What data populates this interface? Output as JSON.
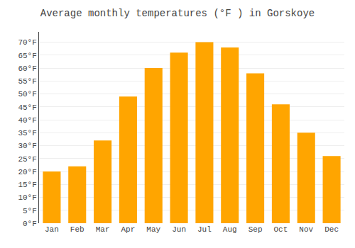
{
  "chart_data": {
    "type": "bar",
    "title": "Average monthly temperatures (°F ) in Gorskoye",
    "categories": [
      "Jan",
      "Feb",
      "Mar",
      "Apr",
      "May",
      "Jun",
      "Jul",
      "Aug",
      "Sep",
      "Oct",
      "Nov",
      "Dec"
    ],
    "values": [
      20,
      22,
      32,
      49,
      60,
      66,
      70,
      68,
      58,
      46,
      35,
      26
    ],
    "color": "#FFA500",
    "ylim": [
      0,
      74
    ],
    "yticks": [
      {
        "value": 0,
        "label": "0°F"
      },
      {
        "value": 5,
        "label": "5°F"
      },
      {
        "value": 10,
        "label": "10°F"
      },
      {
        "value": 15,
        "label": "15°F"
      },
      {
        "value": 20,
        "label": "20°F"
      },
      {
        "value": 25,
        "label": "25°F"
      },
      {
        "value": 30,
        "label": "30°F"
      },
      {
        "value": 35,
        "label": "35°F"
      },
      {
        "value": 40,
        "label": "40°F"
      },
      {
        "value": 45,
        "label": "45°F"
      },
      {
        "value": 50,
        "label": "50°F"
      },
      {
        "value": 55,
        "label": "55°F"
      },
      {
        "value": 60,
        "label": "60°F"
      },
      {
        "value": 65,
        "label": "65°F"
      },
      {
        "value": 70,
        "label": "70°F"
      }
    ],
    "grid": true
  }
}
